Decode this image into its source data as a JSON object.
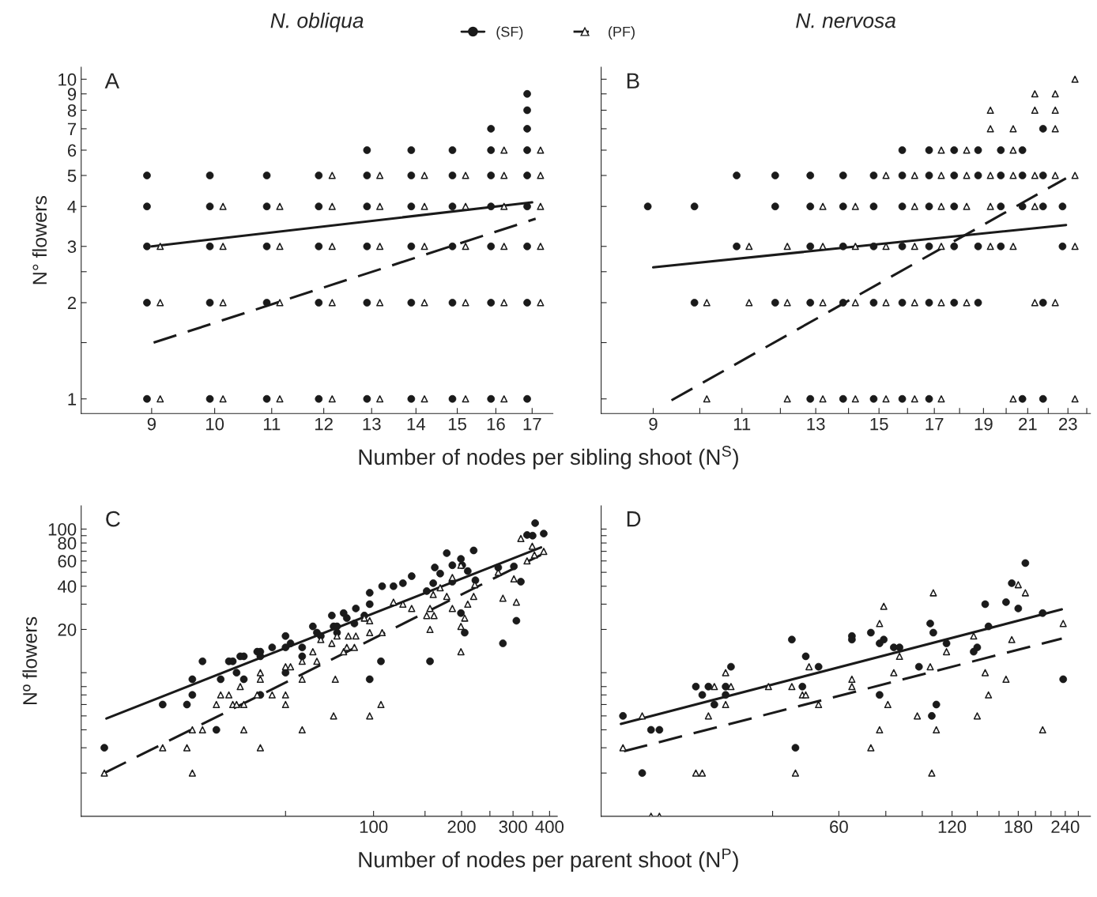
{
  "chart_data": [
    {
      "type": "scatter",
      "title": "N. obliqua",
      "ylabel": "N° flowers",
      "xlabel": "Number of nodes per sibling shoot (N$^{S}$)",
      "annotations": [
        "A"
      ],
      "log": "xy",
      "legend": "top",
      "xlim": [
        8.0,
        17.6
      ],
      "ylim": [
        0.9,
        10.9
      ],
      "xticks": [
        9,
        10,
        11,
        12,
        13,
        14,
        15,
        16,
        17
      ],
      "yticks": [
        1,
        {
          "value": 1.5,
          "label": null
        },
        2,
        {
          "value": 2.5,
          "label": null
        },
        3,
        4,
        5,
        6,
        7,
        8,
        9,
        10
      ],
      "series": [
        {
          "name": "(SF)",
          "type": "scatter",
          "marker": "circle",
          "color": "#1a1a1a",
          "x": [
            8.93,
            8.93,
            8.93,
            8.93,
            8.93,
            9.92,
            9.92,
            9.92,
            9.92,
            9.92,
            10.91,
            10.91,
            10.91,
            10.91,
            10.91,
            11.9,
            11.9,
            11.9,
            11.9,
            11.9,
            12.9,
            12.9,
            12.9,
            12.9,
            12.9,
            12.9,
            13.89,
            13.89,
            13.89,
            13.89,
            13.89,
            13.89,
            14.88,
            14.88,
            14.88,
            14.88,
            14.88,
            14.88,
            15.87,
            15.87,
            15.87,
            15.87,
            15.87,
            15.87,
            15.87,
            16.86,
            16.86,
            16.86,
            16.86,
            16.86,
            16.86,
            16.86,
            16.86,
            16.86
          ],
          "values": [
            5,
            4,
            3,
            2,
            1,
            5,
            4,
            3,
            2,
            1,
            5,
            4,
            3,
            2,
            1,
            5,
            4,
            3,
            2,
            1,
            6,
            5,
            4,
            3,
            2,
            1,
            6,
            5,
            4,
            3,
            2,
            1,
            6,
            5,
            4,
            3,
            2,
            1,
            7,
            6,
            5,
            4,
            3,
            2,
            1,
            9,
            8,
            7,
            6,
            5,
            4,
            3,
            2,
            1
          ]
        },
        {
          "name": "(PF)",
          "type": "scatter",
          "marker": "triangle",
          "color": "#1a1a1a",
          "x": [
            9.13,
            9.13,
            9.13,
            10.14,
            10.14,
            10.14,
            10.14,
            11.15,
            11.15,
            11.15,
            11.15,
            12.17,
            12.17,
            12.17,
            12.17,
            12.17,
            13.18,
            13.18,
            13.18,
            13.18,
            13.18,
            14.2,
            14.2,
            14.2,
            14.2,
            14.2,
            15.21,
            15.21,
            15.21,
            15.21,
            15.21,
            16.22,
            16.22,
            16.22,
            16.22,
            16.22,
            16.22,
            17.24,
            17.24,
            17.24,
            17.24,
            17.24
          ],
          "values": [
            3,
            2,
            1,
            4,
            3,
            2,
            1,
            4,
            3,
            2,
            1,
            5,
            4,
            3,
            2,
            1,
            5,
            4,
            3,
            2,
            1,
            5,
            4,
            3,
            2,
            1,
            5,
            4,
            3,
            2,
            1,
            6,
            5,
            4,
            3,
            2,
            1,
            6,
            5,
            4,
            3,
            2
          ]
        },
        {
          "type": "line",
          "line_style": "solid",
          "color": "#1a1a1a",
          "x": [
            9.0,
            17.0
          ],
          "values": [
            3.0,
            4.12
          ]
        },
        {
          "type": "line",
          "line_style": "dashed",
          "color": "#1a1a1a",
          "x": [
            9.03,
            17.1
          ],
          "values": [
            1.5,
            3.66
          ]
        }
      ]
    },
    {
      "type": "scatter",
      "title": "N. nervosa",
      "annotations": [
        "B"
      ],
      "log": "xy",
      "tick_labels": "x",
      "xlim": [
        8.0,
        24.2
      ],
      "ylim": [
        0.9,
        10.9
      ],
      "xticks": [
        9,
        {
          "value": 10,
          "label": null
        },
        11,
        {
          "value": 12,
          "label": null
        },
        13,
        {
          "value": 14,
          "label": null
        },
        15,
        {
          "value": 16,
          "label": null
        },
        17,
        {
          "value": 18,
          "label": null
        },
        19,
        {
          "value": 20,
          "label": null
        },
        21,
        {
          "value": 22,
          "label": null
        },
        23,
        {
          "value": 24,
          "label": null
        }
      ],
      "yticks": [
        1,
        {
          "value": 1.5,
          "label": null
        },
        2,
        {
          "value": 2.5,
          "label": null
        },
        3,
        4,
        5,
        6,
        7,
        8,
        9,
        10
      ],
      "series": [
        {
          "type": "scatter",
          "marker": "circle",
          "color": "#1a1a1a",
          "x": [
            8.89,
            9.88,
            9.88,
            10.87,
            10.87,
            11.86,
            11.86,
            11.86,
            12.84,
            12.84,
            12.84,
            12.84,
            12.84,
            13.83,
            13.83,
            13.83,
            13.83,
            13.83,
            14.82,
            14.82,
            14.82,
            14.82,
            14.82,
            15.81,
            15.81,
            15.81,
            15.81,
            15.81,
            15.81,
            16.8,
            16.8,
            16.8,
            16.8,
            16.8,
            16.8,
            17.78,
            17.78,
            17.78,
            17.78,
            17.78,
            18.77,
            18.77,
            18.77,
            18.77,
            19.76,
            19.76,
            19.76,
            19.76,
            20.75,
            20.75,
            20.75,
            20.75,
            21.74,
            21.74,
            21.74,
            21.74,
            21.74,
            22.72,
            22.72
          ],
          "values": [
            4,
            4,
            2,
            5,
            3,
            5,
            4,
            2,
            5,
            4,
            3,
            2,
            1,
            5,
            4,
            3,
            2,
            1,
            5,
            4,
            3,
            2,
            1,
            6,
            5,
            4,
            3,
            2,
            1,
            6,
            5,
            4,
            3,
            2,
            1,
            6,
            5,
            4,
            3,
            2,
            6,
            5,
            3,
            2,
            6,
            5,
            4,
            3,
            6,
            5,
            4,
            1,
            7,
            5,
            4,
            2,
            1,
            4,
            3
          ]
        },
        {
          "type": "scatter",
          "marker": "triangle",
          "color": "#1a1a1a",
          "x": [
            10.16,
            10.16,
            11.18,
            11.18,
            12.19,
            12.19,
            12.19,
            13.21,
            13.21,
            13.21,
            13.21,
            14.22,
            14.22,
            14.22,
            14.22,
            15.24,
            15.24,
            15.24,
            15.24,
            16.26,
            16.26,
            16.26,
            16.26,
            16.26,
            17.27,
            17.27,
            17.27,
            17.27,
            17.27,
            17.27,
            18.29,
            18.29,
            18.29,
            18.29,
            19.3,
            19.3,
            19.3,
            19.3,
            19.3,
            20.32,
            20.32,
            20.32,
            20.32,
            20.32,
            21.34,
            21.34,
            21.34,
            21.34,
            21.34,
            22.35,
            22.35,
            22.35,
            22.35,
            22.35,
            23.37,
            23.37,
            23.37,
            23.37
          ],
          "values": [
            2,
            1,
            3,
            2,
            3,
            2,
            1,
            4,
            3,
            2,
            1,
            4,
            3,
            2,
            1,
            5,
            3,
            2,
            1,
            5,
            4,
            3,
            2,
            1,
            6,
            5,
            4,
            3,
            2,
            1,
            6,
            5,
            4,
            2,
            8,
            7,
            5,
            4,
            3,
            7,
            6,
            5,
            3,
            1,
            9,
            8,
            5,
            4,
            2,
            9,
            8,
            7,
            5,
            2,
            10,
            5,
            3,
            1
          ]
        },
        {
          "type": "line",
          "line_style": "solid",
          "color": "#1a1a1a",
          "x": [
            9.0,
            22.9
          ],
          "values": [
            2.58,
            3.5
          ]
        },
        {
          "type": "line",
          "line_style": "dashed",
          "color": "#1a1a1a",
          "x": [
            9.38,
            22.9
          ],
          "values": [
            0.99,
            4.9
          ]
        }
      ]
    },
    {
      "type": "scatter",
      "ylabel": "Nº flowers",
      "xlabel": "Number of nodes per parent shoot (N$^{P}$)",
      "annotations": [
        "C"
      ],
      "log": "xy",
      "xlim": [
        10,
        425
      ],
      "ylim": [
        1,
        145
      ],
      "xticks": [
        {
          "value": 50,
          "label": null
        },
        100,
        {
          "value": 150,
          "label": null
        },
        200,
        {
          "value": 250,
          "label": null
        },
        300,
        {
          "value": 350,
          "label": null
        },
        400
      ],
      "yticks": [
        {
          "value": 2,
          "label": null
        },
        {
          "value": 3,
          "label": null
        },
        {
          "value": 4,
          "label": null
        },
        {
          "value": 5,
          "label": null
        },
        {
          "value": 6,
          "label": null
        },
        {
          "value": 7,
          "label": null
        },
        {
          "value": 8,
          "label": null
        },
        {
          "value": 10,
          "label": null
        },
        20,
        {
          "value": 30,
          "label": null
        },
        40,
        {
          "value": 50,
          "label": null
        },
        60,
        {
          "value": 70,
          "label": null
        },
        80,
        {
          "value": 90,
          "label": null
        },
        100
      ],
      "series": [
        {
          "type": "scatter",
          "marker": "circle",
          "color": "#1a1a1a",
          "x": [
            12,
            19,
            23,
            24,
            24,
            26,
            29,
            30,
            32,
            33,
            34,
            35,
            36,
            36,
            40,
            41,
            41,
            41,
            45,
            50,
            50,
            50,
            52,
            57,
            57,
            62,
            64,
            66,
            72,
            73,
            75,
            75,
            79,
            81,
            87,
            86,
            93,
            97,
            97,
            97,
            107,
            106,
            117,
            126,
            135,
            152,
            156,
            160,
            162,
            169,
            178,
            186,
            186,
            199,
            201,
            199,
            205,
            210,
            220,
            223,
            267,
            277,
            302,
            308,
            319,
            335,
            350,
            357,
            382
          ],
          "values": [
            3,
            6,
            6,
            9,
            7,
            12,
            4,
            9,
            12,
            12,
            10,
            13,
            13,
            9,
            14,
            14,
            13,
            7,
            15,
            18,
            15,
            10,
            16,
            15,
            13,
            21,
            19,
            18,
            25,
            21,
            21,
            19,
            26,
            24,
            28,
            22,
            25,
            36,
            30,
            9,
            40,
            12,
            40,
            42,
            47,
            37,
            12,
            42,
            54,
            49,
            68,
            56,
            43,
            62,
            56,
            26,
            19,
            51,
            71,
            44,
            54,
            16,
            55,
            23,
            43,
            91,
            90,
            110,
            93
          ]
        },
        {
          "type": "scatter",
          "marker": "triangle",
          "color": "#1a1a1a",
          "x": [
            12,
            19,
            23,
            24,
            24,
            26,
            29,
            30,
            32,
            33,
            34,
            35,
            36,
            36,
            40,
            41,
            41,
            41,
            45,
            50,
            50,
            50,
            52,
            57,
            57,
            57,
            62,
            64,
            66,
            72,
            73,
            74,
            75,
            79,
            81,
            82,
            86,
            87,
            93,
            97,
            97,
            97,
            106,
            107,
            117,
            126,
            135,
            152,
            156,
            156,
            160,
            161,
            169,
            178,
            186,
            186,
            199,
            199,
            199,
            205,
            210,
            220,
            222,
            267,
            277,
            302,
            308,
            319,
            335,
            349,
            355,
            382
          ],
          "values": [
            2,
            3,
            3,
            4,
            2,
            4,
            6,
            7,
            7,
            6,
            6,
            8,
            6,
            4,
            7,
            10,
            9,
            3,
            7,
            11,
            7,
            6,
            11,
            12,
            9,
            4,
            14,
            12,
            17,
            16,
            5,
            9,
            18,
            14,
            15,
            18,
            15,
            18,
            24,
            23,
            19,
            5,
            6,
            19,
            31,
            30,
            28,
            25,
            28,
            20,
            35,
            25,
            39,
            34,
            46,
            28,
            56,
            21,
            14,
            24,
            30,
            34,
            41,
            50,
            33,
            45,
            31,
            86,
            60,
            76,
            66,
            70
          ]
        },
        {
          "type": "line",
          "line_style": "solid",
          "color": "#1a1a1a",
          "x": [
            12.2,
            374
          ],
          "values": [
            4.8,
            74.5
          ]
        },
        {
          "type": "line",
          "line_style": "dashed",
          "color": "#1a1a1a",
          "x": [
            12,
            374
          ],
          "values": [
            2.0,
            66.2
          ]
        }
      ]
    },
    {
      "type": "scatter",
      "annotations": [
        "D"
      ],
      "log": "xy",
      "tick_labels": "x",
      "xlim": [
        14,
        280
      ],
      "ylim": [
        1,
        145
      ],
      "xticks": [
        {
          "value": 40,
          "label": null
        },
        60,
        {
          "value": 80,
          "label": null
        },
        {
          "value": 100,
          "label": null
        },
        120,
        {
          "value": 140,
          "label": null
        },
        {
          "value": 160,
          "label": null
        },
        180,
        {
          "value": 200,
          "label": null
        },
        {
          "value": 220,
          "label": null
        },
        240,
        {
          "value": 260,
          "label": null
        }
      ],
      "yticks": [
        {
          "value": 2,
          "label": null
        },
        {
          "value": 3,
          "label": null
        },
        {
          "value": 4,
          "label": null
        },
        {
          "value": 5,
          "label": null
        },
        {
          "value": 6,
          "label": null
        },
        {
          "value": 7,
          "label": null
        },
        {
          "value": 8,
          "label": null
        },
        {
          "value": 10,
          "label": null
        },
        20,
        {
          "value": 30,
          "label": null
        },
        40,
        {
          "value": 50,
          "label": null
        },
        60,
        {
          "value": 70,
          "label": null
        },
        80,
        {
          "value": 90,
          "label": null
        },
        100
      ],
      "series": [
        {
          "type": "scatter",
          "marker": "circle",
          "color": "#1a1a1a",
          "x": [
            16,
            18,
            19,
            20,
            25,
            26,
            27,
            28,
            30,
            30,
            31,
            45,
            46,
            48,
            49,
            53,
            65,
            65,
            73,
            77,
            77,
            79,
            84,
            87,
            98,
            105,
            106,
            107,
            109,
            116,
            137,
            140,
            147,
            150,
            167,
            173,
            180,
            188,
            209,
            237
          ],
          "values": [
            5,
            2,
            4,
            4,
            8,
            7,
            8,
            6,
            8,
            7,
            11,
            17,
            3,
            8,
            13,
            11,
            18,
            17,
            19,
            16,
            7,
            17,
            15,
            15,
            11,
            22,
            5,
            19,
            6,
            16,
            14,
            15,
            30,
            21,
            31,
            42,
            28,
            58,
            26,
            9
          ]
        },
        {
          "type": "scatter",
          "marker": "triangle",
          "color": "#1a1a1a",
          "x": [
            16,
            18,
            19,
            20,
            25,
            26,
            27,
            28,
            30,
            30,
            31,
            39,
            45,
            46,
            48,
            49,
            50,
            53,
            65,
            65,
            73,
            77,
            77,
            79,
            81,
            84,
            87,
            97,
            105,
            106,
            107,
            109,
            116,
            137,
            140,
            147,
            150,
            167,
            173,
            180,
            188,
            209,
            237
          ],
          "values": [
            3,
            5,
            1,
            1,
            2,
            2,
            5,
            8,
            10,
            6,
            8,
            8,
            8,
            2,
            7,
            7,
            11,
            6,
            9,
            8,
            3,
            22,
            4,
            29,
            6,
            10,
            13,
            5,
            11,
            2,
            36,
            4,
            14,
            18,
            5,
            10,
            7,
            9,
            17,
            41,
            36,
            4,
            22
          ]
        },
        {
          "type": "line",
          "line_style": "solid",
          "color": "#1a1a1a",
          "x": [
            15.8,
            235
          ],
          "values": [
            4.4,
            27.6
          ]
        },
        {
          "type": "line",
          "line_style": "dashed",
          "color": "#1a1a1a",
          "x": [
            16.1,
            235
          ],
          "values": [
            2.84,
            17.3
          ]
        }
      ]
    }
  ]
}
